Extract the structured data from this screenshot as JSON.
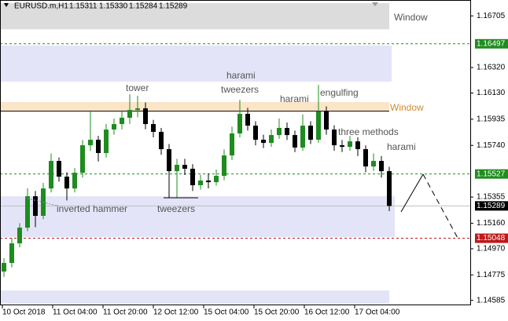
{
  "chart_data": {
    "type": "candlestick",
    "header": {
      "symbol": "EURUSD.m,H1",
      "ohlc": [
        "1.15311",
        "1.15330",
        "1.15284",
        "1.15289"
      ]
    },
    "categories": [
      "10 Oct 2018",
      "11 Oct 04:00",
      "11 Oct 20:00",
      "12 Oct 12:00",
      "15 Oct 04:00",
      "15 Oct 20:00",
      "16 Oct 12:00",
      "17 Oct 04:00"
    ],
    "ylim": [
      1.1456,
      1.168
    ],
    "yticks": [
      1.16705,
      {
        "value": 1.1632,
        "label": "1.16320"
      },
      {
        "value": 1.1613,
        "label": "1.16130"
      },
      1.15935,
      {
        "value": 1.1574,
        "label": "1.15740"
      },
      1.15355,
      {
        "value": 1.1516,
        "label": "1.15160"
      },
      {
        "value": 1.1497,
        "label": "1.14970"
      },
      1.14775,
      1.14585
    ],
    "up_color": "#1e8c1e",
    "down_color": "#000000",
    "open": [
      1.148,
      1.14864,
      1.1501,
      1.15127,
      1.15361,
      1.15215,
      1.15419,
      1.15624,
      1.15507,
      1.15419,
      1.15536,
      1.15741,
      1.15782,
      1.15683,
      1.15858,
      1.15899,
      1.15946,
      1.16004,
      1.16016,
      1.15899,
      1.15841,
      1.15712,
      1.15548,
      1.15595,
      1.15566,
      1.15443,
      1.15478,
      1.15466,
      1.15513,
      1.15665,
      1.15829,
      1.15975,
      1.15887,
      1.15782,
      1.15759,
      1.15817,
      1.1587,
      1.15817,
      1.15724,
      1.15887,
      1.15782,
      1.15993,
      1.15858,
      1.15741,
      1.15729,
      1.1577,
      1.15712,
      1.15583,
      1.15624,
      1.15548
    ],
    "high": [
      1.149,
      1.1505,
      1.1516,
      1.1542,
      1.154,
      1.1546,
      1.1568,
      1.1565,
      1.1554,
      1.1557,
      1.1578,
      1.1599,
      1.1581,
      1.159,
      1.1594,
      1.16,
      1.1612,
      1.1611,
      1.1606,
      1.1593,
      1.1587,
      1.1575,
      1.1564,
      1.1564,
      1.156,
      1.1552,
      1.1553,
      1.1556,
      1.1571,
      1.1588,
      1.1608,
      1.1602,
      1.1592,
      1.1582,
      1.1586,
      1.1594,
      1.1591,
      1.1585,
      1.1597,
      1.1592,
      1.1619,
      1.1603,
      1.1589,
      1.1578,
      1.1581,
      1.158,
      1.1574,
      1.1568,
      1.1566,
      1.1558
    ],
    "low": [
      1.1476,
      1.1483,
      1.1498,
      1.151,
      1.1513,
      1.1519,
      1.1539,
      1.1547,
      1.1533,
      1.1539,
      1.155,
      1.157,
      1.1562,
      1.1565,
      1.1582,
      1.1586,
      1.159,
      1.1595,
      1.1586,
      1.158,
      1.1567,
      1.1535,
      1.1535,
      1.1552,
      1.154,
      1.1541,
      1.1542,
      1.1544,
      1.1548,
      1.1563,
      1.158,
      1.1585,
      1.1574,
      1.1572,
      1.1573,
      1.1579,
      1.1578,
      1.1569,
      1.157,
      1.1575,
      1.1576,
      1.1582,
      1.157,
      1.1569,
      1.157,
      1.1566,
      1.1554,
      1.1555,
      1.155,
      1.1525
    ],
    "close": [
      1.14864,
      1.1501,
      1.15127,
      1.15361,
      1.15215,
      1.15419,
      1.15624,
      1.15507,
      1.15419,
      1.15536,
      1.15741,
      1.15782,
      1.15683,
      1.15858,
      1.15899,
      1.15946,
      1.16004,
      1.16016,
      1.15899,
      1.15841,
      1.15712,
      1.15548,
      1.15595,
      1.15566,
      1.15443,
      1.15478,
      1.15466,
      1.15513,
      1.15665,
      1.15829,
      1.15975,
      1.15887,
      1.15782,
      1.15759,
      1.15817,
      1.1587,
      1.15817,
      1.15724,
      1.15887,
      1.15782,
      1.15993,
      1.15858,
      1.15741,
      1.15729,
      1.1577,
      1.15712,
      1.15583,
      1.15624,
      1.15548,
      1.15289
    ],
    "zones": [
      {
        "low": 1.16605,
        "high": 1.168,
        "color": "#dcdcdc"
      },
      {
        "low": 1.16215,
        "high": 1.16484,
        "color": "#e4e4f8"
      },
      {
        "low": 1.15993,
        "high": 1.16063,
        "color": "#fbe5c8"
      },
      {
        "low": 1.15057,
        "high": 1.15361,
        "color": "#e4e4f8"
      },
      {
        "low": 1.1456,
        "high": 1.14659,
        "color": "#e4e4f8"
      }
    ],
    "plain_levels": [
      1.15995
    ],
    "levels": [
      {
        "value": 1.16497,
        "color": "#1e8c1e",
        "style": "dashed"
      },
      {
        "value": 1.15527,
        "color": "#1e8c1e",
        "style": "dashed"
      },
      {
        "value": 1.15289,
        "color": "#000000",
        "style": "solid"
      },
      {
        "value": 1.15048,
        "color": "#c01818",
        "style": "dashed"
      }
    ],
    "annotations": {
      "window_top": "Window",
      "window_mid": "Window",
      "tower": "tower",
      "harami_1": "harami",
      "tweezers_1": "tweezers",
      "harami_2": "harami",
      "engulfing": "engulfing",
      "three_methods": "three methods",
      "harami_3": "harami",
      "inverted_hammer": "inverted hammer",
      "tweezers_2": "tweezers"
    }
  }
}
